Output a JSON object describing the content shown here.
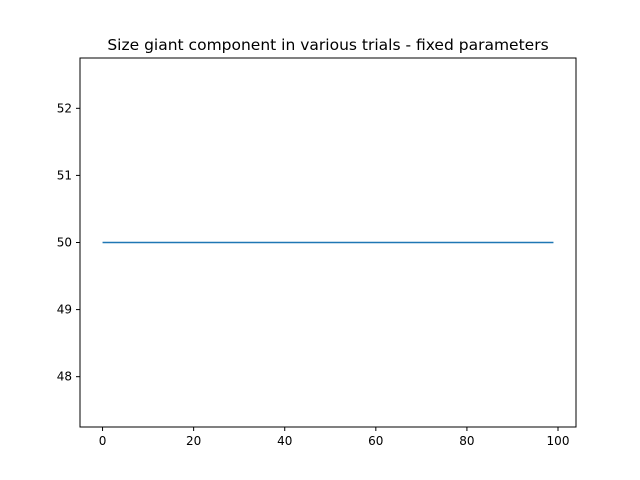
{
  "chart_data": {
    "type": "line",
    "title": "Size giant component in various trials - fixed parameters",
    "xlabel": "",
    "ylabel": "",
    "xlim": [
      -4.95,
      103.95
    ],
    "ylim": [
      47.25,
      52.75
    ],
    "xticks": [
      0,
      20,
      40,
      60,
      80,
      100
    ],
    "yticks": [
      48,
      49,
      50,
      51,
      52
    ],
    "grid": false,
    "series": [
      {
        "color": "#1f77b4",
        "x": [
          0,
          99
        ],
        "y": [
          50,
          50
        ]
      }
    ]
  }
}
